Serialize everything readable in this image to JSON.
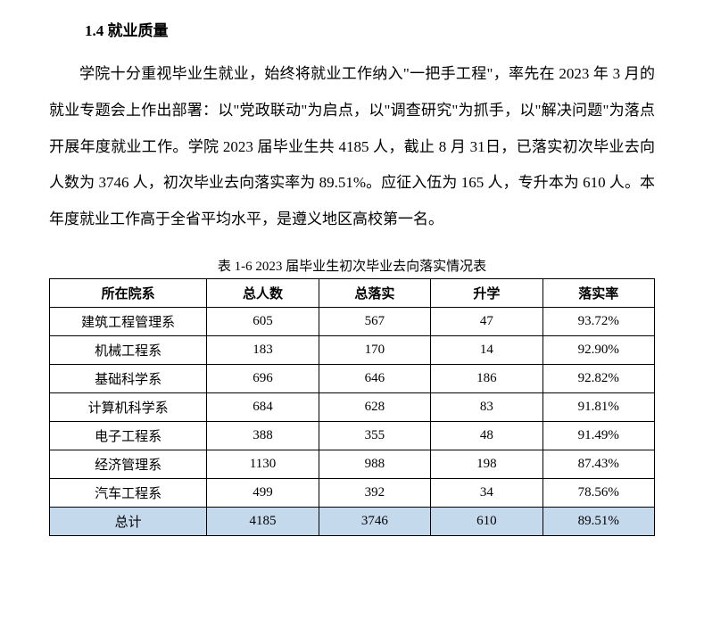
{
  "heading": "1.4 就业质量",
  "paragraph": "学院十分重视毕业生就业，始终将就业工作纳入\"一把手工程\"，率先在 2023 年 3 月的就业专题会上作出部署：以\"党政联动\"为启点，以\"调查研究\"为抓手，以\"解决问题\"为落点开展年度就业工作。学院 2023 届毕业生共 4185 人，截止 8 月 31日，已落实初次毕业去向人数为 3746 人，初次毕业去向落实率为 89.51%。应征入伍为 165 人，专升本为 610 人。本年度就业工作高于全省平均水平，是遵义地区高校第一名。",
  "table": {
    "caption": "表 1-6 2023 届毕业生初次毕业去向落实情况表",
    "columns": [
      "所在院系",
      "总人数",
      "总落实",
      "升学",
      "落实率"
    ],
    "rows": [
      [
        "建筑工程管理系",
        "605",
        "567",
        "47",
        "93.72%"
      ],
      [
        "机械工程系",
        "183",
        "170",
        "14",
        "92.90%"
      ],
      [
        "基础科学系",
        "696",
        "646",
        "186",
        "92.82%"
      ],
      [
        "计算机科学系",
        "684",
        "628",
        "83",
        "91.81%"
      ],
      [
        "电子工程系",
        "388",
        "355",
        "48",
        "91.49%"
      ],
      [
        "经济管理系",
        "1130",
        "988",
        "198",
        "87.43%"
      ],
      [
        "汽车工程系",
        "499",
        "392",
        "34",
        "78.56%"
      ]
    ],
    "total_row": [
      "总计",
      "4185",
      "3746",
      "610",
      "89.51%"
    ],
    "colors": {
      "border": "#000000",
      "total_bg": "#c5d9ed",
      "page_bg": "#ffffff",
      "text": "#000000"
    },
    "font_sizes": {
      "heading": 17,
      "body": 17,
      "caption": 15,
      "table": 15
    }
  }
}
